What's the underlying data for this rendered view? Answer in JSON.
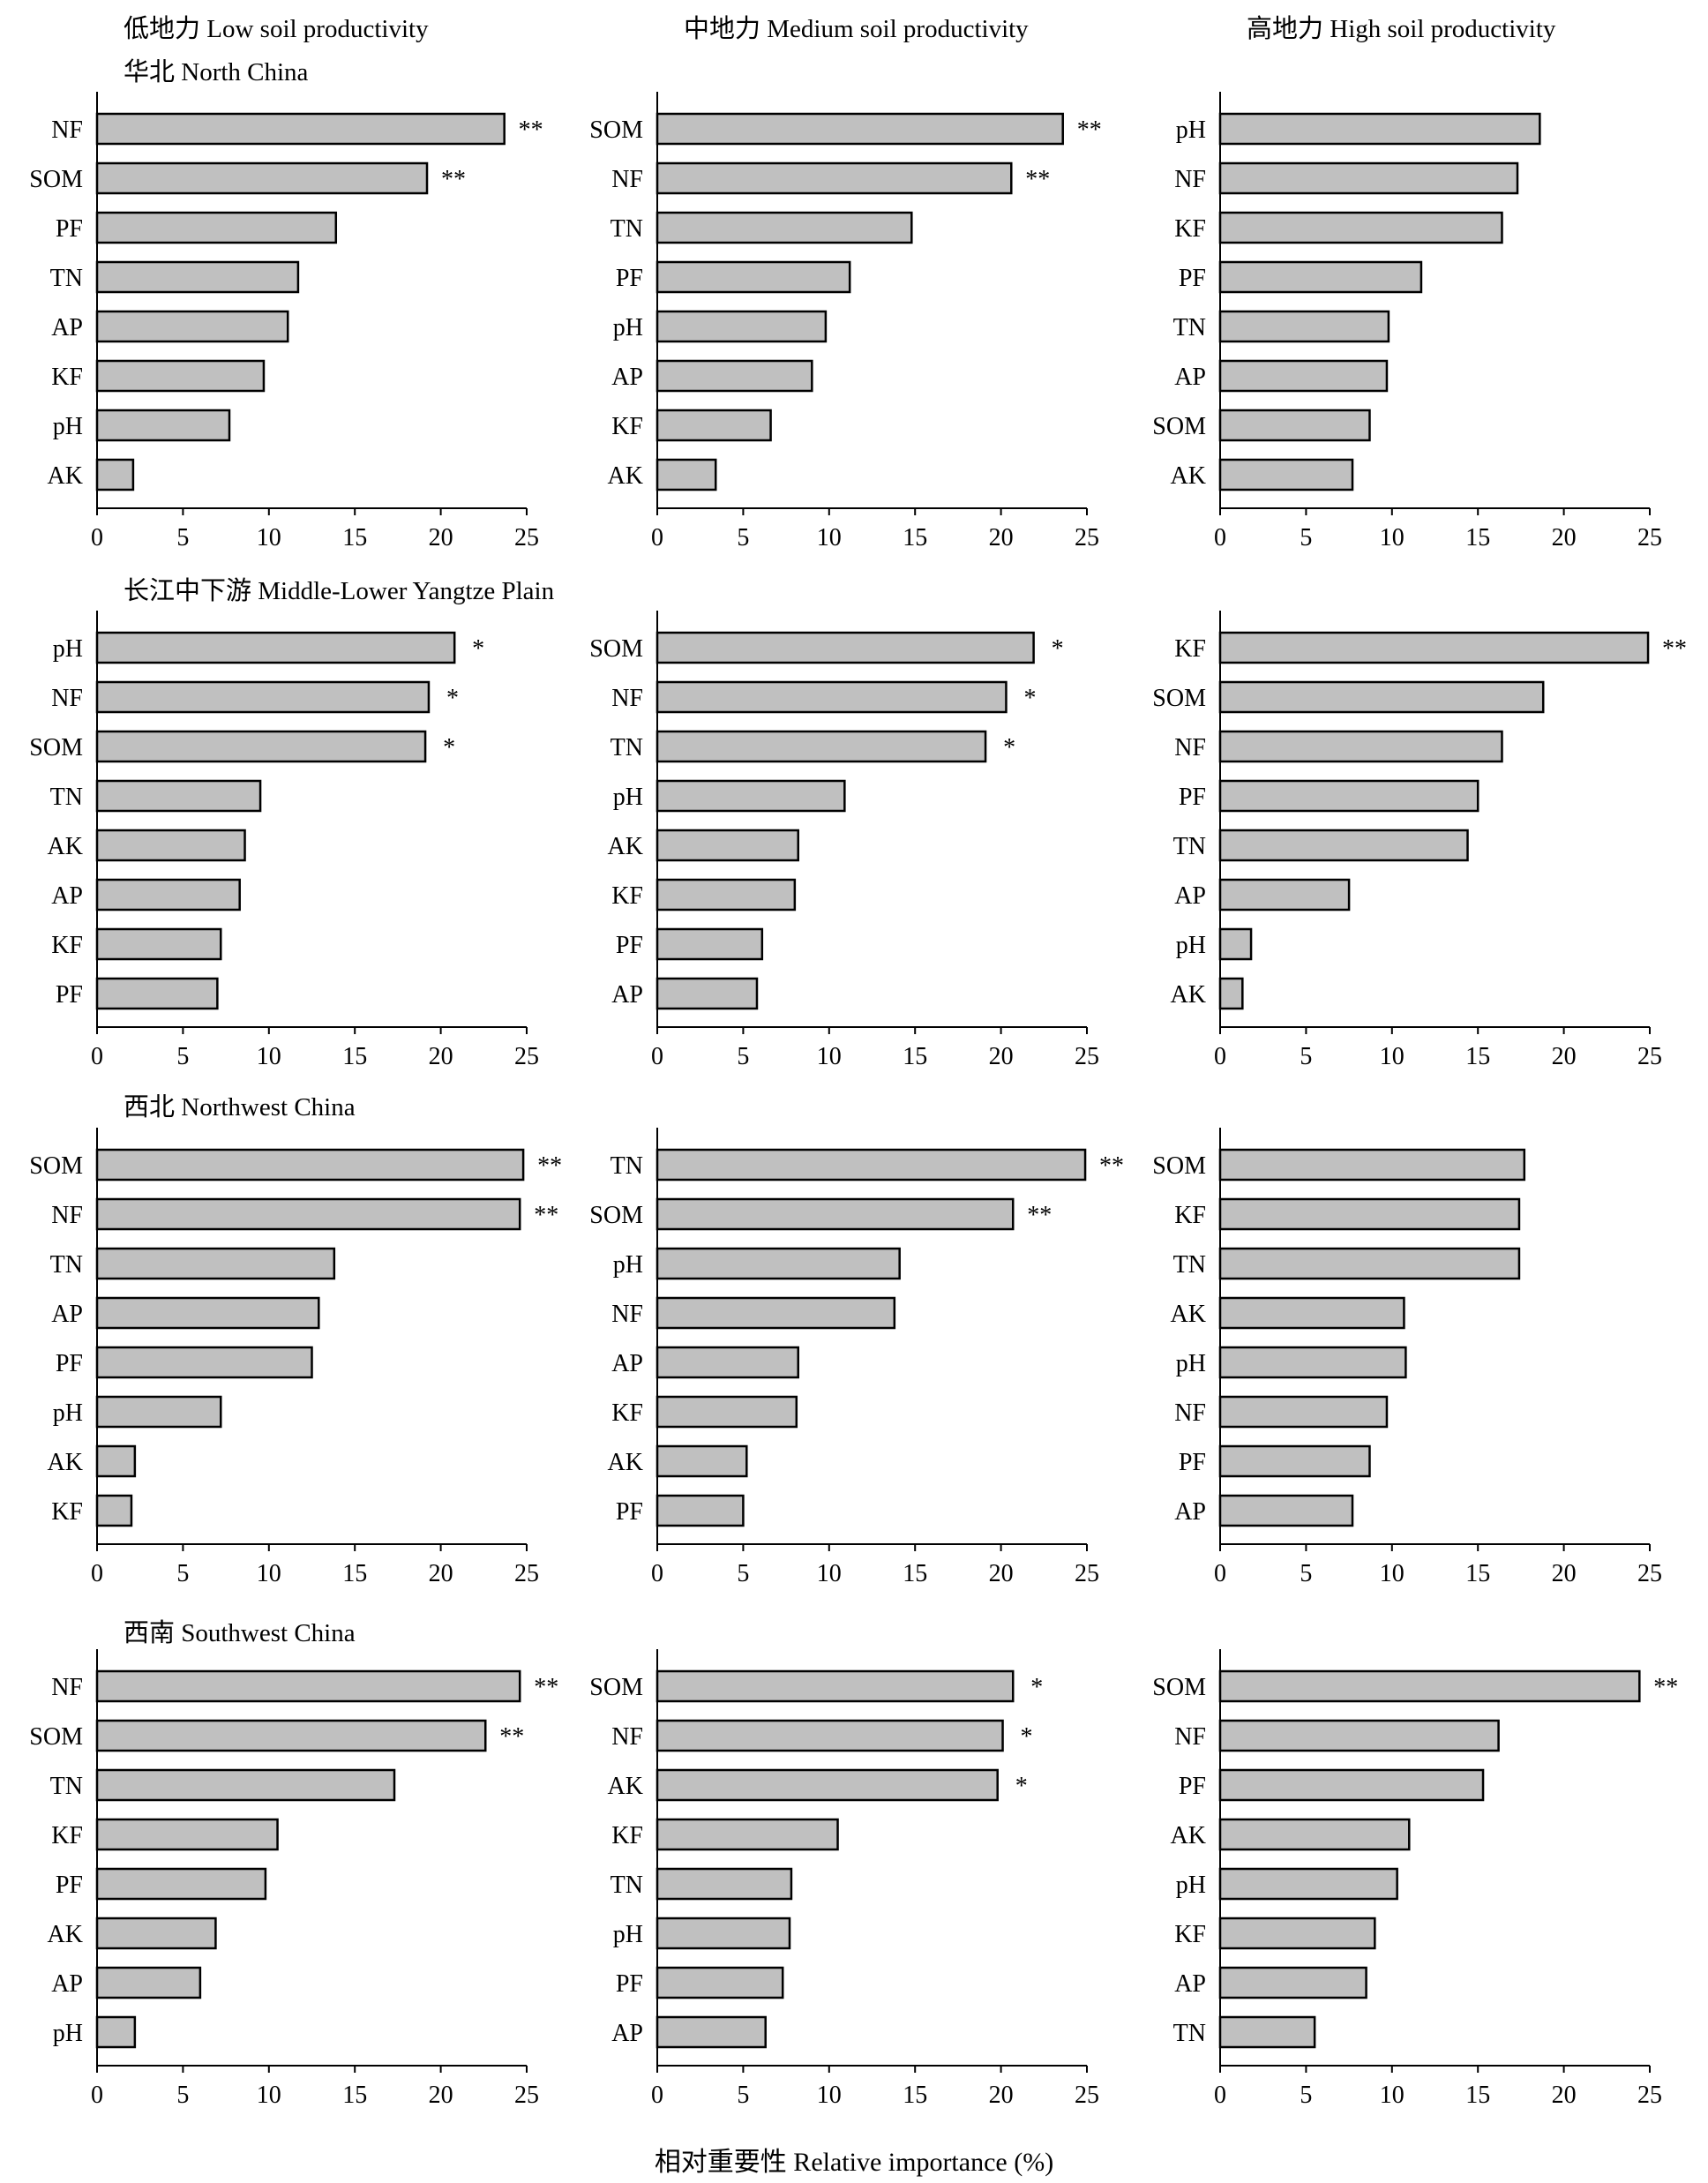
{
  "column_titles": [
    "低地力 Low soil productivity",
    "中地力 Medium soil productivity",
    "高地力 High soil productivity"
  ],
  "region_titles": [
    "华北 North China",
    "长江中下游 Middle-Lower Yangtze Plain",
    "西北 Northwest China",
    "西南 Southwest China"
  ],
  "xlabel": "相对重要性 Relative importance (%)",
  "colors": {
    "bar_fill": "#c0c0c0",
    "bar_stroke": "#000000",
    "axis": "#000000"
  },
  "chart_data": [
    {
      "type": "bar",
      "orientation": "horizontal",
      "xlim": [
        0,
        25
      ],
      "xticks": [
        0,
        5,
        10,
        15,
        20,
        25
      ],
      "categories": [
        "NF",
        "SOM",
        "PF",
        "TN",
        "AP",
        "KF",
        "pH",
        "AK"
      ],
      "values": [
        23.7,
        19.2,
        13.9,
        11.7,
        11.1,
        9.7,
        7.7,
        2.1
      ],
      "annotations": [
        "**",
        "**",
        "",
        "",
        "",
        "",
        "",
        ""
      ]
    },
    {
      "type": "bar",
      "orientation": "horizontal",
      "xlim": [
        0,
        25
      ],
      "xticks": [
        0,
        5,
        10,
        15,
        20,
        25
      ],
      "categories": [
        "SOM",
        "NF",
        "TN",
        "PF",
        "pH",
        "AP",
        "KF",
        "AK"
      ],
      "values": [
        23.6,
        20.6,
        14.8,
        11.2,
        9.8,
        9.0,
        6.6,
        3.4
      ],
      "annotations": [
        "**",
        "**",
        "",
        "",
        "",
        "",
        "",
        ""
      ]
    },
    {
      "type": "bar",
      "orientation": "horizontal",
      "xlim": [
        0,
        25
      ],
      "xticks": [
        0,
        5,
        10,
        15,
        20,
        25
      ],
      "categories": [
        "pH",
        "NF",
        "KF",
        "PF",
        "TN",
        "AP",
        "SOM",
        "AK"
      ],
      "values": [
        18.6,
        17.3,
        16.4,
        11.7,
        9.8,
        9.7,
        8.7,
        7.7
      ],
      "annotations": [
        "",
        "",
        "",
        "",
        "",
        "",
        "",
        ""
      ]
    },
    {
      "type": "bar",
      "orientation": "horizontal",
      "xlim": [
        0,
        25
      ],
      "xticks": [
        0,
        5,
        10,
        15,
        20,
        25
      ],
      "categories": [
        "pH",
        "NF",
        "SOM",
        "TN",
        "AK",
        "AP",
        "KF",
        "PF"
      ],
      "values": [
        20.8,
        19.3,
        19.1,
        9.5,
        8.6,
        8.3,
        7.2,
        7.0
      ],
      "annotations": [
        "*",
        "*",
        "*",
        "",
        "",
        "",
        "",
        ""
      ]
    },
    {
      "type": "bar",
      "orientation": "horizontal",
      "xlim": [
        0,
        25
      ],
      "xticks": [
        0,
        5,
        10,
        15,
        20,
        25
      ],
      "categories": [
        "SOM",
        "NF",
        "TN",
        "pH",
        "AK",
        "KF",
        "PF",
        "AP"
      ],
      "values": [
        21.9,
        20.3,
        19.1,
        10.9,
        8.2,
        8.0,
        6.1,
        5.8
      ],
      "annotations": [
        "*",
        "*",
        "*",
        "",
        "",
        "",
        "",
        ""
      ]
    },
    {
      "type": "bar",
      "orientation": "horizontal",
      "xlim": [
        0,
        25
      ],
      "xticks": [
        0,
        5,
        10,
        15,
        20,
        25
      ],
      "categories": [
        "KF",
        "SOM",
        "NF",
        "PF",
        "TN",
        "AP",
        "pH",
        "AK"
      ],
      "values": [
        24.9,
        18.8,
        16.4,
        15.0,
        14.4,
        7.5,
        1.8,
        1.3
      ],
      "annotations": [
        "**",
        "",
        "",
        "",
        "",
        "",
        "",
        ""
      ]
    },
    {
      "type": "bar",
      "orientation": "horizontal",
      "xlim": [
        0,
        25
      ],
      "xticks": [
        0,
        5,
        10,
        15,
        20,
        25
      ],
      "categories": [
        "SOM",
        "NF",
        "TN",
        "AP",
        "PF",
        "pH",
        "AK",
        "KF"
      ],
      "values": [
        24.8,
        24.6,
        13.8,
        12.9,
        12.5,
        7.2,
        2.2,
        2.0
      ],
      "annotations": [
        "**",
        "**",
        "",
        "",
        "",
        "",
        "",
        ""
      ]
    },
    {
      "type": "bar",
      "orientation": "horizontal",
      "xlim": [
        0,
        25
      ],
      "xticks": [
        0,
        5,
        10,
        15,
        20,
        25
      ],
      "categories": [
        "TN",
        "SOM",
        "pH",
        "NF",
        "AP",
        "KF",
        "AK",
        "PF"
      ],
      "values": [
        24.9,
        20.7,
        14.1,
        13.8,
        8.2,
        8.1,
        5.2,
        5.0
      ],
      "annotations": [
        "**",
        "**",
        "",
        "",
        "",
        "",
        "",
        ""
      ]
    },
    {
      "type": "bar",
      "orientation": "horizontal",
      "xlim": [
        0,
        25
      ],
      "xticks": [
        0,
        5,
        10,
        15,
        20,
        25
      ],
      "categories": [
        "SOM",
        "KF",
        "TN",
        "AK",
        "pH",
        "NF",
        "PF",
        "AP"
      ],
      "values": [
        17.7,
        17.4,
        17.4,
        10.7,
        10.8,
        9.7,
        8.7,
        7.7
      ],
      "annotations": [
        "",
        "",
        "",
        "",
        "",
        "",
        "",
        ""
      ]
    },
    {
      "type": "bar",
      "orientation": "horizontal",
      "xlim": [
        0,
        25
      ],
      "xticks": [
        0,
        5,
        10,
        15,
        20,
        25
      ],
      "categories": [
        "NF",
        "SOM",
        "TN",
        "KF",
        "PF",
        "AK",
        "AP",
        "pH"
      ],
      "values": [
        24.6,
        22.6,
        17.3,
        10.5,
        9.8,
        6.9,
        6.0,
        2.2
      ],
      "annotations": [
        "**",
        "**",
        "",
        "",
        "",
        "",
        "",
        ""
      ]
    },
    {
      "type": "bar",
      "orientation": "horizontal",
      "xlim": [
        0,
        25
      ],
      "xticks": [
        0,
        5,
        10,
        15,
        20,
        25
      ],
      "categories": [
        "SOM",
        "NF",
        "AK",
        "KF",
        "TN",
        "pH",
        "PF",
        "AP"
      ],
      "values": [
        20.7,
        20.1,
        19.8,
        10.5,
        7.8,
        7.7,
        7.3,
        6.3
      ],
      "annotations": [
        "*",
        "*",
        "*",
        "",
        "",
        "",
        "",
        ""
      ]
    },
    {
      "type": "bar",
      "orientation": "horizontal",
      "xlim": [
        0,
        25
      ],
      "xticks": [
        0,
        5,
        10,
        15,
        20,
        25
      ],
      "categories": [
        "SOM",
        "NF",
        "PF",
        "AK",
        "pH",
        "KF",
        "AP",
        "TN"
      ],
      "values": [
        24.4,
        16.2,
        15.3,
        11.0,
        10.3,
        9.0,
        8.5,
        5.5
      ],
      "annotations": [
        "**",
        "",
        "",
        "",
        "",
        "",
        "",
        ""
      ]
    }
  ]
}
